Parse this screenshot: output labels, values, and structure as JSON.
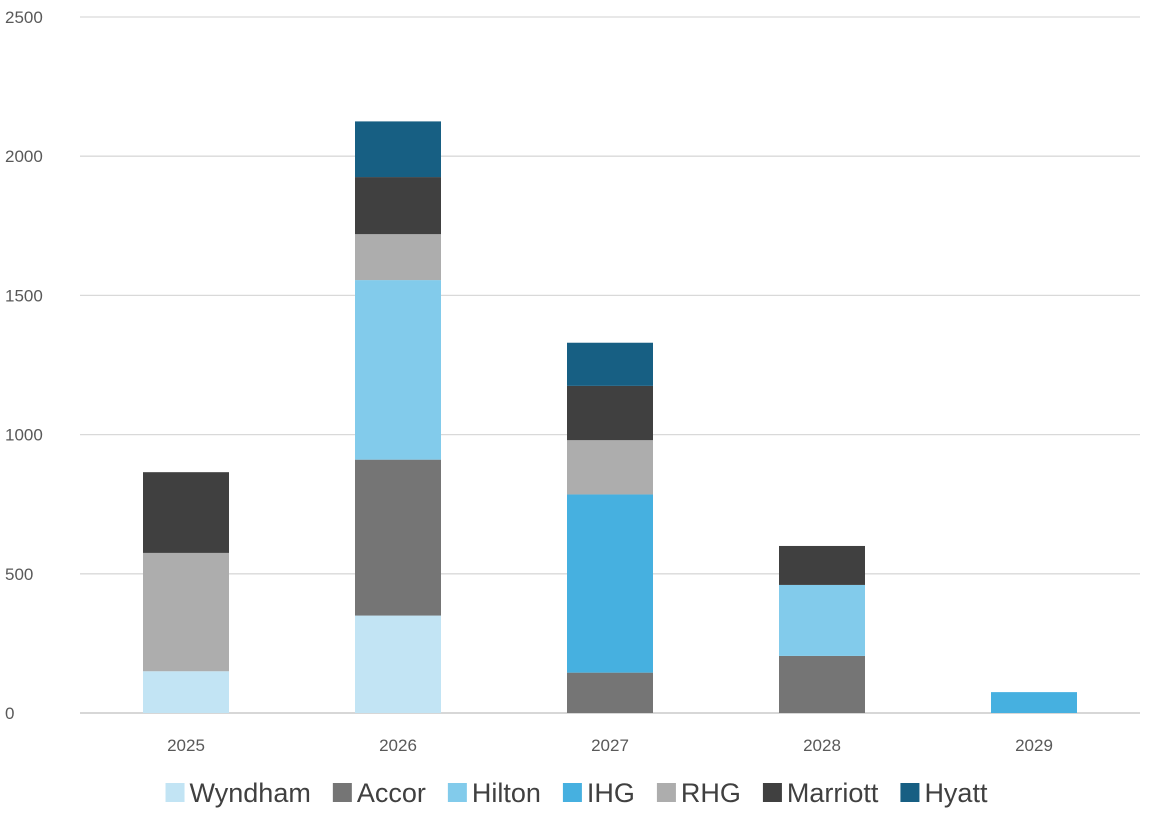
{
  "chart_data": {
    "type": "bar",
    "stacked": true,
    "categories": [
      "2025",
      "2026",
      "2027",
      "2028",
      "2029"
    ],
    "series": [
      {
        "name": "Wyndham",
        "color": "#c2e4f4",
        "values": [
          150,
          350,
          0,
          0,
          0
        ]
      },
      {
        "name": "Accor",
        "color": "#757575",
        "values": [
          0,
          560,
          145,
          205,
          0
        ]
      },
      {
        "name": "Hilton",
        "color": "#82cbeb",
        "values": [
          0,
          645,
          0,
          255,
          0
        ]
      },
      {
        "name": "IHG",
        "color": "#46b0e0",
        "values": [
          0,
          0,
          640,
          0,
          75
        ]
      },
      {
        "name": "RHG",
        "color": "#adadad",
        "values": [
          425,
          165,
          195,
          0,
          0
        ]
      },
      {
        "name": "Marriott",
        "color": "#404040",
        "values": [
          290,
          205,
          195,
          140,
          0
        ]
      },
      {
        "name": "Hyatt",
        "color": "#175f83",
        "values": [
          0,
          200,
          155,
          0,
          0
        ]
      }
    ],
    "yticks": [
      "0",
      "500",
      "1000",
      "1500",
      "2000",
      "2500"
    ],
    "ylim": [
      0,
      2500
    ],
    "grid": true,
    "legend": "bottom"
  }
}
